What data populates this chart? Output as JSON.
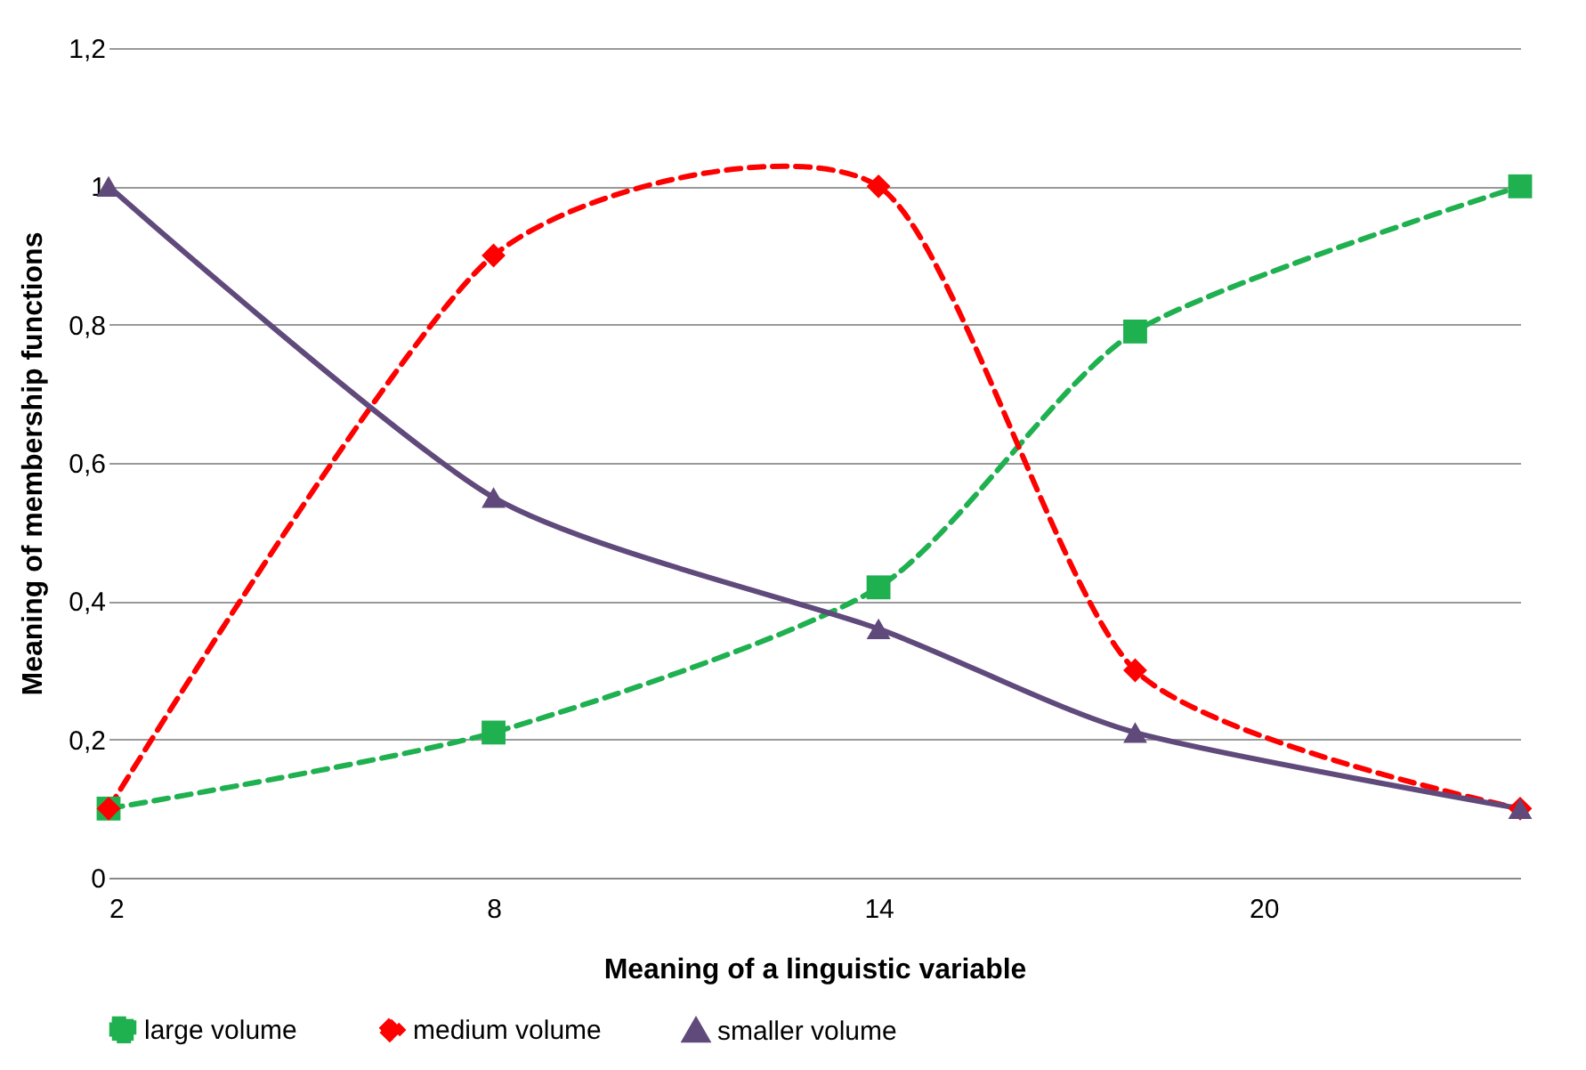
{
  "chart_data": {
    "type": "line",
    "xlabel": "Meaning of a linguistic variable",
    "ylabel": "Meaning of membership functions",
    "x": [
      2,
      8,
      14,
      18,
      24
    ],
    "xlim": [
      2,
      24
    ],
    "xticks": [
      2,
      8,
      14,
      20
    ],
    "ylim": [
      0,
      1.2
    ],
    "yticks": [
      0,
      {
        "value": 0.2,
        "label": "0,2"
      },
      {
        "value": 0.4,
        "label": "0,4"
      },
      {
        "value": 0.6,
        "label": "0,6"
      },
      {
        "value": 0.8,
        "label": "0,8"
      },
      1,
      {
        "value": 1.2,
        "label": "1,2"
      }
    ],
    "grid": "y",
    "legend": "bottom",
    "series": [
      {
        "name": "large volume",
        "color": "#1fb050",
        "marker": "square",
        "line_style": "dashed",
        "values": [
          0.1,
          0.21,
          0.42,
          0.79,
          1
        ]
      },
      {
        "name": "medium volume",
        "color": "#ff0000",
        "marker": "diamond",
        "line_style": "dashed",
        "values": [
          0.1,
          0.9,
          1,
          0.3,
          0.1
        ]
      },
      {
        "name": "smaller volume",
        "color": "#604a7b",
        "marker": "triangle",
        "line_style": "solid",
        "values": [
          1,
          0.55,
          0.36,
          0.21,
          0.1
        ]
      }
    ]
  }
}
